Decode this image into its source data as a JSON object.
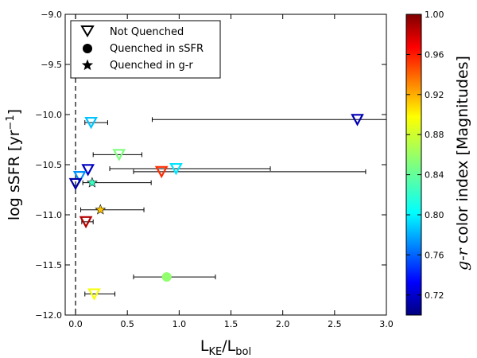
{
  "chart_data": {
    "type": "scatter",
    "xlabel": {
      "main": "L",
      "sub1": "KE",
      "sep": "/L",
      "sub2": "bol"
    },
    "ylabel": {
      "main": "log sSFR [yr",
      "sup": "−1",
      "end": "]"
    },
    "xlim": [
      -0.1,
      3.0
    ],
    "ylim": [
      -12.0,
      -9.0
    ],
    "xticks": [
      {
        "value": 0.0,
        "label": "0.0"
      },
      {
        "value": 0.5,
        "label": "0.5"
      },
      {
        "value": 1.0,
        "label": "1.0"
      },
      {
        "value": 1.5,
        "label": "1.5"
      },
      {
        "value": 2.0,
        "label": "2.0"
      },
      {
        "value": 2.5,
        "label": "2.5"
      },
      {
        "value": 3.0,
        "label": "3.0"
      }
    ],
    "yticks": [
      {
        "value": -12.0,
        "label": "−12.0"
      },
      {
        "value": -11.5,
        "label": "−11.5"
      },
      {
        "value": -11.0,
        "label": "−11.0"
      },
      {
        "value": -10.5,
        "label": "−10.5"
      },
      {
        "value": -10.0,
        "label": "−10.0"
      },
      {
        "value": -9.5,
        "label": "−9.5"
      },
      {
        "value": -9.0,
        "label": "−9.0"
      }
    ],
    "reference_line_x": 0.0,
    "colorbar": {
      "label_italic": "g-r",
      "label_rest": " color index [Magnitudes]",
      "min": 0.7,
      "max": 1.0,
      "ticks": [
        {
          "value": 0.72,
          "label": "0.72"
        },
        {
          "value": 0.76,
          "label": "0.76"
        },
        {
          "value": 0.8,
          "label": "0.80"
        },
        {
          "value": 0.84,
          "label": "0.84"
        },
        {
          "value": 0.88,
          "label": "0.88"
        },
        {
          "value": 0.92,
          "label": "0.92"
        },
        {
          "value": 0.96,
          "label": "0.96"
        },
        {
          "value": 1.0,
          "label": "1.00"
        }
      ]
    },
    "legend": {
      "placement": "top-left",
      "entries": [
        {
          "marker": "triangle-open",
          "label": "Not Quenched"
        },
        {
          "marker": "circle",
          "label": "Quenched in sSFR"
        },
        {
          "marker": "star",
          "label": "Quenched in g-r"
        }
      ]
    },
    "series": [
      {
        "name": "Not Quenched",
        "marker": "triangle-open",
        "points": [
          {
            "x": 0.15,
            "y": -10.08,
            "gr": 0.795,
            "xerr": [
              0.09,
              0.31
            ]
          },
          {
            "x": 2.72,
            "y": -10.05,
            "gr": 0.715,
            "xerr": [
              0.74,
              3.1
            ]
          },
          {
            "x": 0.42,
            "y": -10.4,
            "gr": 0.85,
            "xerr": [
              0.17,
              0.64
            ]
          },
          {
            "x": 0.83,
            "y": -10.57,
            "gr": 0.95,
            "xerr": [
              0.56,
              2.8
            ]
          },
          {
            "x": 0.97,
            "y": -10.54,
            "gr": 0.805,
            "xerr": [
              0.33,
              1.88
            ]
          },
          {
            "x": 0.12,
            "y": -10.55,
            "gr": 0.72,
            "xerr": [
              0.0,
              0.0
            ]
          },
          {
            "x": 0.04,
            "y": -10.62,
            "gr": 0.78,
            "xerr": [
              0.0,
              0.0
            ]
          },
          {
            "x": 0.0,
            "y": -10.69,
            "gr": 0.712,
            "xerr": [
              0.0,
              0.0
            ]
          },
          {
            "x": 0.1,
            "y": -11.07,
            "gr": 0.985,
            "xerr": [
              0.06,
              0.17
            ]
          },
          {
            "x": 0.18,
            "y": -11.79,
            "gr": 0.885,
            "xerr": [
              0.09,
              0.38
            ]
          }
        ]
      },
      {
        "name": "Quenched in sSFR",
        "marker": "circle",
        "points": [
          {
            "x": 0.88,
            "y": -11.62,
            "gr": 0.855,
            "xerr": [
              0.56,
              1.35
            ]
          }
        ]
      },
      {
        "name": "Quenched in g-r",
        "marker": "star",
        "points": [
          {
            "x": 0.24,
            "y": -10.95,
            "gr": 0.905,
            "xerr": [
              0.05,
              0.66
            ]
          },
          {
            "x": 0.16,
            "y": -10.68,
            "gr": 0.83,
            "xerr": [
              0.07,
              0.73
            ]
          }
        ]
      }
    ]
  }
}
